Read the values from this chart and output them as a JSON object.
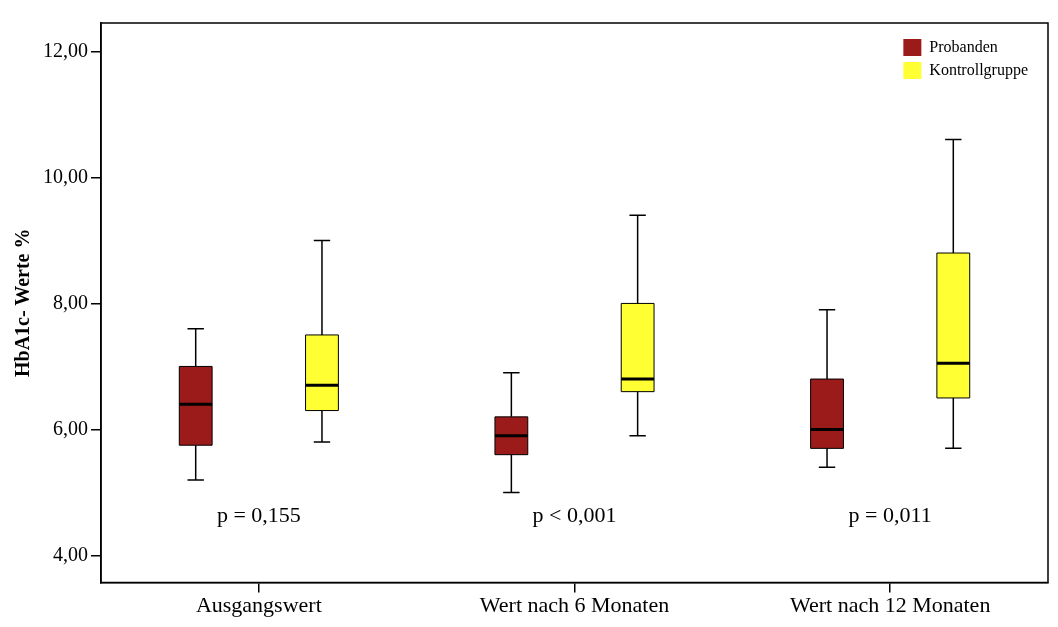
{
  "chart_data": {
    "type": "box",
    "ylabel": "HbA1c- Werte %",
    "categories": [
      "Ausgangswert",
      "Wert nach 6 Monaten",
      "Wert nach 12 Monaten"
    ],
    "series": [
      {
        "name": "Probanden",
        "color": "#9b1b1b",
        "boxes": [
          {
            "low": 5.2,
            "q1": 5.75,
            "median": 6.4,
            "q3": 7.0,
            "high": 7.6
          },
          {
            "low": 5.0,
            "q1": 5.6,
            "median": 5.9,
            "q3": 6.2,
            "high": 6.9
          },
          {
            "low": 5.4,
            "q1": 5.7,
            "median": 6.0,
            "q3": 6.8,
            "high": 7.9
          }
        ]
      },
      {
        "name": "Kontrollgruppe",
        "color": "#ffff33",
        "boxes": [
          {
            "low": 5.8,
            "q1": 6.3,
            "median": 6.7,
            "q3": 7.5,
            "high": 9.0
          },
          {
            "low": 5.9,
            "q1": 6.6,
            "median": 6.8,
            "q3": 8.0,
            "high": 9.4
          },
          {
            "low": 5.7,
            "q1": 6.5,
            "median": 7.05,
            "q3": 8.8,
            "high": 10.6
          }
        ]
      }
    ],
    "ylim": [
      3.57,
      12.45
    ],
    "yticks": [
      {
        "value": 4,
        "label": "4,00"
      },
      {
        "value": 6,
        "label": "6,00"
      },
      {
        "value": 8,
        "label": "8,00"
      },
      {
        "value": 10,
        "label": "10,00"
      },
      {
        "value": 12,
        "label": "12,00"
      }
    ],
    "annotations": [
      "p = 0,155",
      "p < 0,001",
      "p = 0,011"
    ],
    "grid": false,
    "legend": "top right"
  }
}
